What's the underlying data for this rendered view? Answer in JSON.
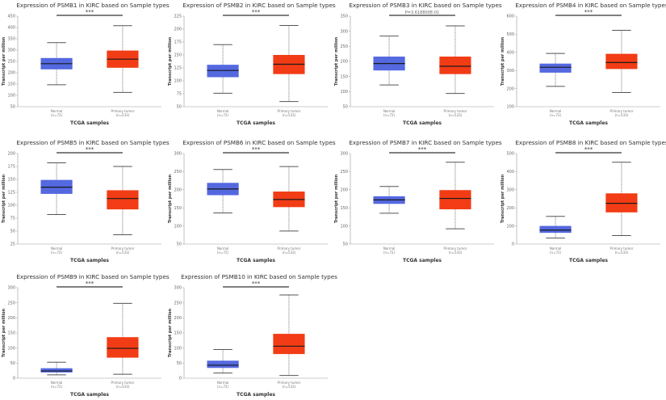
{
  "colors": {
    "normal": "#5468e0",
    "tumor": "#f23c15",
    "median": "#1a1a1a"
  },
  "chart_data": [
    {
      "type": "box",
      "title": "Expression of PSMB1 in KIRC based on Sample types",
      "xlabel": "TCGA samples",
      "ylabel": "Transcript per million",
      "ylim": [
        50,
        450
      ],
      "yticks": [
        50,
        100,
        150,
        200,
        250,
        300,
        350,
        400,
        450
      ],
      "significance": "***",
      "categories": [
        "Normal",
        "Primary tumor"
      ],
      "counts": [
        "(n=72)",
        "(n=533)"
      ],
      "boxes": [
        {
          "min": 147,
          "q1": 215,
          "median": 240,
          "q3": 265,
          "max": 333
        },
        {
          "min": 113,
          "q1": 222,
          "median": 260,
          "q3": 298,
          "max": 408
        }
      ]
    },
    {
      "type": "box",
      "title": "Expression of PSMB2 in KIRC based on Sample types",
      "xlabel": "TCGA samples",
      "ylabel": "Transcript per million",
      "ylim": [
        50,
        225
      ],
      "yticks": [
        50,
        75,
        100,
        125,
        150,
        175,
        200,
        225
      ],
      "significance": "***",
      "categories": [
        "Normal",
        "Primary tumor"
      ],
      "counts": [
        "(n=72)",
        "(n=533)"
      ],
      "boxes": [
        {
          "min": 76,
          "q1": 107,
          "median": 120,
          "q3": 131,
          "max": 170
        },
        {
          "min": 60,
          "q1": 113,
          "median": 132,
          "q3": 150,
          "max": 207
        }
      ]
    },
    {
      "type": "box",
      "title": "Expression of PSMB3 in KIRC based on Sample types",
      "xlabel": "TCGA samples",
      "ylabel": "Transcript per million",
      "ylim": [
        50,
        350
      ],
      "yticks": [
        50,
        100,
        150,
        200,
        250,
        300,
        350
      ],
      "significance": "P=3.618800E-01",
      "categories": [
        "Normal",
        "Primary tumor"
      ],
      "counts": [
        "(n=72)",
        "(n=533)"
      ],
      "boxes": [
        {
          "min": 122,
          "q1": 170,
          "median": 193,
          "q3": 216,
          "max": 284
        },
        {
          "min": 94,
          "q1": 158,
          "median": 184,
          "q3": 216,
          "max": 318
        }
      ]
    },
    {
      "type": "box",
      "title": "Expression of PSMB4 in KIRC based on Sample types",
      "xlabel": "TCGA samples",
      "ylabel": "Transcript per million",
      "ylim": [
        100,
        600
      ],
      "yticks": [
        100,
        200,
        300,
        400,
        500,
        600
      ],
      "significance": "***",
      "categories": [
        "Normal",
        "Primary tumor"
      ],
      "counts": [
        "(n=72)",
        "(n=533)"
      ],
      "boxes": [
        {
          "min": 212,
          "q1": 288,
          "median": 318,
          "q3": 338,
          "max": 394
        },
        {
          "min": 178,
          "q1": 308,
          "median": 344,
          "q3": 392,
          "max": 522
        }
      ]
    },
    {
      "type": "box",
      "title": "Expression of PSMB5 in KIRC based on Sample types",
      "xlabel": "TCGA samples",
      "ylabel": "Transcript per million",
      "ylim": [
        25,
        200
      ],
      "yticks": [
        25,
        50,
        75,
        100,
        125,
        150,
        175,
        200
      ],
      "significance": "***",
      "categories": [
        "Normal",
        "Primary tumor"
      ],
      "counts": [
        "(n=72)",
        "(n=533)"
      ],
      "boxes": [
        {
          "min": 82,
          "q1": 122,
          "median": 135,
          "q3": 149,
          "max": 182
        },
        {
          "min": 43,
          "q1": 92,
          "median": 113,
          "q3": 129,
          "max": 175
        }
      ]
    },
    {
      "type": "box",
      "title": "Expression of PSMB6 in KIRC based on Sample types",
      "xlabel": "TCGA samples",
      "ylabel": "Transcript per million",
      "ylim": [
        50,
        300
      ],
      "yticks": [
        50,
        100,
        150,
        200,
        250,
        300
      ],
      "significance": "***",
      "categories": [
        "Normal",
        "Primary tumor"
      ],
      "counts": [
        "(n=72)",
        "(n=533)"
      ],
      "boxes": [
        {
          "min": 136,
          "q1": 185,
          "median": 202,
          "q3": 219,
          "max": 256
        },
        {
          "min": 86,
          "q1": 152,
          "median": 173,
          "q3": 195,
          "max": 264
        }
      ]
    },
    {
      "type": "box",
      "title": "Expression of PSMB7 in KIRC based on Sample types",
      "xlabel": "TCGA samples",
      "ylabel": "Transcript per million",
      "ylim": [
        50,
        300
      ],
      "yticks": [
        50,
        100,
        150,
        200,
        250,
        300
      ],
      "significance": "***",
      "categories": [
        "Normal",
        "Primary tumor"
      ],
      "counts": [
        "(n=72)",
        "(n=533)"
      ],
      "boxes": [
        {
          "min": 135,
          "q1": 161,
          "median": 172,
          "q3": 182,
          "max": 209
        },
        {
          "min": 92,
          "q1": 146,
          "median": 176,
          "q3": 199,
          "max": 276
        }
      ]
    },
    {
      "type": "box",
      "title": "Expression of PSMB8 in KIRC based on Sample types",
      "xlabel": "TCGA samples",
      "ylabel": "Transcript per million",
      "ylim": [
        0,
        500
      ],
      "yticks": [
        0,
        100,
        200,
        300,
        400,
        500
      ],
      "significance": "***",
      "categories": [
        "Normal",
        "Primary tumor"
      ],
      "counts": [
        "(n=72)",
        "(n=533)"
      ],
      "boxes": [
        {
          "min": 33,
          "q1": 62,
          "median": 77,
          "q3": 100,
          "max": 153
        },
        {
          "min": 47,
          "q1": 175,
          "median": 225,
          "q3": 280,
          "max": 452
        }
      ]
    },
    {
      "type": "box",
      "title": "Expression of PSMB9 in KIRC based on Sample types",
      "xlabel": "TCGA samples",
      "ylabel": "Transcript per million",
      "ylim": [
        0,
        300
      ],
      "yticks": [
        0,
        50,
        100,
        150,
        200,
        250,
        300
      ],
      "significance": "***",
      "categories": [
        "Normal",
        "Primary tumor"
      ],
      "counts": [
        "(n=72)",
        "(n=533)"
      ],
      "boxes": [
        {
          "min": 11,
          "q1": 19,
          "median": 24,
          "q3": 33,
          "max": 53
        },
        {
          "min": 13,
          "q1": 68,
          "median": 99,
          "q3": 136,
          "max": 248
        }
      ]
    },
    {
      "type": "box",
      "title": "Expression of PSMB10 in KIRC based on Sample types",
      "xlabel": "TCGA samples",
      "ylabel": "Transcript per million",
      "ylim": [
        0,
        300
      ],
      "yticks": [
        0,
        50,
        100,
        150,
        200,
        250,
        300
      ],
      "significance": "***",
      "categories": [
        "Normal",
        "Primary tumor"
      ],
      "counts": [
        "(n=72)",
        "(n=533)"
      ],
      "boxes": [
        {
          "min": 17,
          "q1": 34,
          "median": 43,
          "q3": 58,
          "max": 95
        },
        {
          "min": 9,
          "q1": 80,
          "median": 106,
          "q3": 147,
          "max": 276
        }
      ]
    }
  ]
}
